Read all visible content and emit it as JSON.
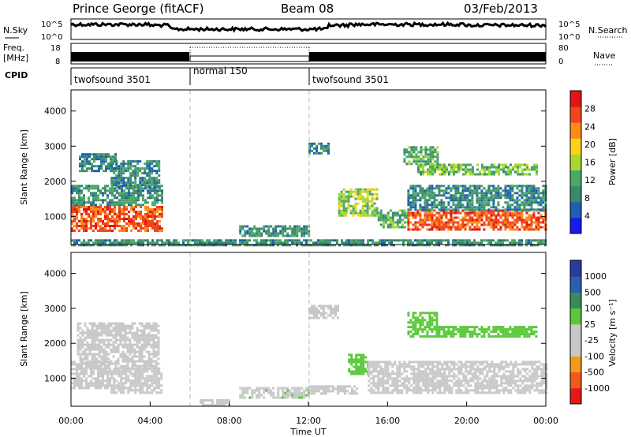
{
  "header": {
    "station": "Prince George (fitACF)",
    "beam": "Beam 08",
    "date": "03/Feb/2013"
  },
  "strip_labels": {
    "nsky": "N.Sky",
    "freq_line1": "Freq.",
    "freq_line2": "[MHz]",
    "cpid": "CPID",
    "nsearch": "N.Search",
    "nave": "Nave",
    "nsky_ticks": [
      "10^5",
      "10^0"
    ],
    "freq_ticks": [
      "18",
      "8"
    ],
    "nave_ticks": [
      "80",
      "0"
    ]
  },
  "cpid_segments": [
    {
      "label": "twofsound 3501",
      "start_h": 0,
      "end_h": 6
    },
    {
      "label": "normal 150",
      "start_h": 6,
      "end_h": 12
    },
    {
      "label": "twofsound 3501",
      "start_h": 12,
      "end_h": 24
    }
  ],
  "colors": {
    "power": [
      "#1a1aee",
      "#1d5fb0",
      "#3a8a6a",
      "#4aa86a",
      "#a6d92e",
      "#ffd21a",
      "#ff8c1a",
      "#f0461e",
      "#e01616"
    ],
    "velocity": [
      "#e51919",
      "#f05a1a",
      "#f39a1c",
      "#c8c8c8",
      "#c8c8c8",
      "#5ac83a",
      "#3a8a5a",
      "#2a5fb0",
      "#2a3aa0"
    ]
  },
  "chart_data": [
    {
      "type": "heatmap",
      "name": "power",
      "xlabel": "",
      "ylabel": "Slant Range [km]",
      "xlim": [
        0,
        24
      ],
      "ylim": [
        200,
        4600
      ],
      "yticks": [
        1000,
        2000,
        3000,
        4000
      ],
      "colorbar": {
        "label": "Power [dB]",
        "ticks": [
          "4",
          "8",
          "12",
          "16",
          "20",
          "24",
          "28"
        ],
        "range": [
          0,
          32
        ]
      },
      "bands": [
        {
          "t0": 0.0,
          "t1": 4.6,
          "r0": 600,
          "r1": 1300,
          "v": 26
        },
        {
          "t0": 0.0,
          "t1": 4.6,
          "r0": 1300,
          "r1": 1900,
          "v": 10
        },
        {
          "t0": 0.4,
          "t1": 2.2,
          "r0": 2300,
          "r1": 2800,
          "v": 8
        },
        {
          "t0": 2.0,
          "t1": 4.5,
          "r0": 1800,
          "r1": 2600,
          "v": 9
        },
        {
          "t0": 0.0,
          "t1": 24,
          "r0": 200,
          "r1": 350,
          "v": 10
        },
        {
          "t0": 8.5,
          "t1": 12.0,
          "r0": 450,
          "r1": 750,
          "v": 10
        },
        {
          "t0": 12.0,
          "t1": 13.0,
          "r0": 2800,
          "r1": 3100,
          "v": 8
        },
        {
          "t0": 13.5,
          "t1": 15.5,
          "r0": 1000,
          "r1": 1800,
          "v": 16
        },
        {
          "t0": 15.5,
          "t1": 17.0,
          "r0": 700,
          "r1": 1200,
          "v": 12
        },
        {
          "t0": 17.0,
          "t1": 24,
          "r0": 600,
          "r1": 1200,
          "v": 26
        },
        {
          "t0": 17.0,
          "t1": 24,
          "r0": 1200,
          "r1": 1900,
          "v": 9
        },
        {
          "t0": 17.5,
          "t1": 23.5,
          "r0": 2200,
          "r1": 2500,
          "v": 14
        },
        {
          "t0": 16.8,
          "t1": 18.5,
          "r0": 2500,
          "r1": 3000,
          "v": 12
        }
      ]
    },
    {
      "type": "heatmap",
      "name": "velocity",
      "xlabel": "Time UT",
      "ylabel": "Slant Range [km]",
      "xlim": [
        0,
        24
      ],
      "ylim": [
        200,
        4600
      ],
      "yticks": [
        1000,
        2000,
        3000,
        4000
      ],
      "xticks": [
        "00:00",
        "04:00",
        "08:00",
        "12:00",
        "16:00",
        "20:00",
        "00:00"
      ],
      "colorbar": {
        "label": "Velocity [m s⁻¹]",
        "ticks": [
          "1000",
          "500",
          "100",
          "25",
          "-25",
          "-100",
          "-500",
          "-1000"
        ],
        "range": [
          -1200,
          1200
        ]
      },
      "bands": [
        {
          "t0": 0.0,
          "t1": 2.0,
          "r0": 700,
          "r1": 1500,
          "v": 0
        },
        {
          "t0": 2.0,
          "t1": 4.6,
          "r0": 600,
          "r1": 1300,
          "v": -250
        },
        {
          "t0": 0.3,
          "t1": 4.4,
          "r0": 1300,
          "r1": 2600,
          "v": 5
        },
        {
          "t0": 6.5,
          "t1": 8.0,
          "r0": 250,
          "r1": 400,
          "v": -200
        },
        {
          "t0": 8.5,
          "t1": 12.0,
          "r0": 450,
          "r1": 750,
          "v": 60
        },
        {
          "t0": 12.0,
          "t1": 14.5,
          "r0": 550,
          "r1": 800,
          "v": -200
        },
        {
          "t0": 12.0,
          "t1": 13.5,
          "r0": 2700,
          "r1": 3100,
          "v": 5
        },
        {
          "t0": 14.0,
          "t1": 15.0,
          "r0": 1100,
          "r1": 1700,
          "v": 300
        },
        {
          "t0": 15.0,
          "t1": 24,
          "r0": 600,
          "r1": 1500,
          "v": 0
        },
        {
          "t0": 17.0,
          "t1": 23.5,
          "r0": 2200,
          "r1": 2500,
          "v": 300
        },
        {
          "t0": 17.0,
          "t1": 18.5,
          "r0": 2500,
          "r1": 2900,
          "v": 250
        }
      ]
    }
  ]
}
